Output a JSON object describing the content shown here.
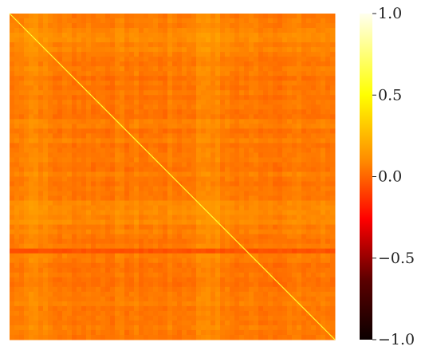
{
  "chart_data": {
    "type": "heatmap",
    "title": "",
    "xlabel": "",
    "ylabel": "",
    "colormap": "hot",
    "value_range": [
      -1.0,
      1.0
    ],
    "diagonal_value": 1.0,
    "typical_value": 0.05,
    "matrix_description_values": {
      "bright_bands_centers_fraction": [
        0.07,
        0.61
      ],
      "band_peak_value": 0.2,
      "dark_line_row_fraction": 0.73,
      "dark_line_value": -0.05
    },
    "colorbar": {
      "ticks": [
        {
          "value": 1.0,
          "label": "1.0"
        },
        {
          "value": 0.5,
          "label": "0.5"
        },
        {
          "value": 0.0,
          "label": "0.0"
        },
        {
          "value": -0.5,
          "label": "−0.5"
        },
        {
          "value": -1.0,
          "label": "−1.0"
        }
      ],
      "colors": [
        "#0b0000",
        "#6e0000",
        "#ff0000",
        "#ff8000",
        "#ffff00",
        "#ffffe8"
      ]
    }
  }
}
